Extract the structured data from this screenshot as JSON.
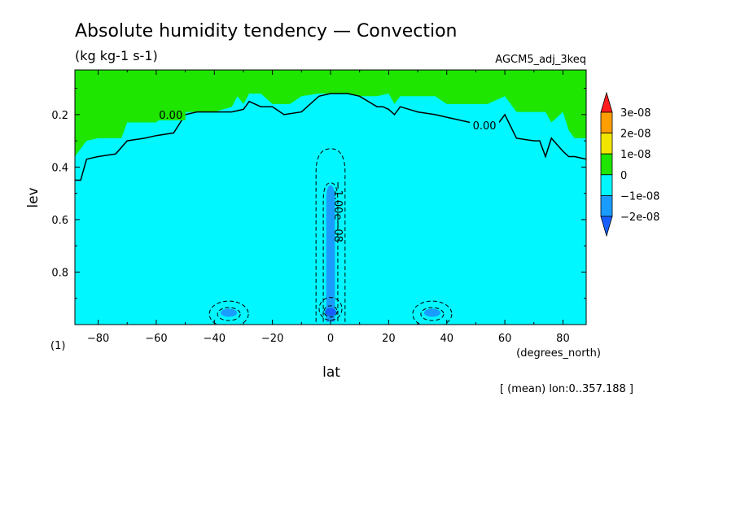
{
  "chart_data": {
    "type": "contour",
    "title": "Absolute humidity tendency — Convection",
    "units": "(kg kg-1 s-1)",
    "model_label": "AGCM5_adj_3keq",
    "xlabel": "lat",
    "x_units": "(degrees_north)",
    "ylabel": "lev",
    "y_units": "(1)",
    "footnote": "[ (mean) lon:0..357.188 ]",
    "xlim": [
      -88,
      88
    ],
    "ylim": [
      1.0,
      0.03
    ],
    "x_ticks": [
      -80,
      -60,
      -40,
      -20,
      0,
      20,
      40,
      60,
      80
    ],
    "x_tick_labels": [
      "−80",
      "−60",
      "−40",
      "−20",
      "0",
      "20",
      "40",
      "60",
      "80"
    ],
    "y_ticks": [
      0.2,
      0.4,
      0.6,
      0.8
    ],
    "y_tick_labels": [
      "0.2",
      "0.4",
      "0.6",
      "0.8"
    ],
    "colorbar": {
      "levels": [
        {
          "label": "3e-08",
          "value": 3e-08,
          "color": "#ff1c1c"
        },
        {
          "label": "2e-08",
          "value": 2e-08,
          "color": "#ff9e00"
        },
        {
          "label": "1e-08",
          "value": 1e-08,
          "color": "#f2e600"
        },
        {
          "label": "0",
          "value": 0,
          "color": "#1ee600"
        },
        {
          "label": "−1e-08",
          "value": -1e-08,
          "color": "#00f7ff"
        },
        {
          "label": "−2e-08",
          "value": -2e-08,
          "color": "#1a9cff"
        }
      ],
      "top_arrow_color": "#ff1c1c",
      "bottom_arrow_color": "#1760ff"
    },
    "fills": {
      "positive": "#1ee600",
      "negative_weak": "#00f7ff",
      "negative_mid": "#1a9cff",
      "negative_strong": "#1760ff"
    },
    "zero_boundary": {
      "lat": [
        -88,
        -86,
        -84,
        -80,
        -72,
        -70,
        -64,
        -60,
        -56,
        -52,
        -46,
        -40,
        -34,
        -32,
        -30,
        -28,
        -24,
        -20,
        -14,
        -10,
        -4,
        0,
        4,
        10,
        16,
        20,
        22,
        24,
        28,
        32,
        36,
        40,
        48,
        54,
        60,
        64,
        68,
        70,
        74,
        76,
        80,
        82,
        84,
        88
      ],
      "lev": [
        0.36,
        0.33,
        0.3,
        0.29,
        0.29,
        0.23,
        0.23,
        0.23,
        0.19,
        0.19,
        0.19,
        0.19,
        0.17,
        0.13,
        0.16,
        0.12,
        0.12,
        0.16,
        0.16,
        0.13,
        0.12,
        0.12,
        0.12,
        0.13,
        0.13,
        0.12,
        0.16,
        0.13,
        0.13,
        0.13,
        0.13,
        0.16,
        0.16,
        0.16,
        0.13,
        0.19,
        0.19,
        0.19,
        0.19,
        0.23,
        0.19,
        0.26,
        0.29,
        0.29
      ]
    },
    "zero_contour": {
      "label": "0.00",
      "lat": [
        -88,
        -86,
        -84,
        -80,
        -74,
        -70,
        -64,
        -60,
        -54,
        -50,
        -46,
        -40,
        -34,
        -30,
        -28,
        -24,
        -20,
        -16,
        -10,
        -4,
        0,
        6,
        10,
        16,
        18,
        20,
        22,
        24,
        30,
        36,
        40,
        48,
        54,
        56,
        58,
        60,
        64,
        70,
        72,
        74,
        76,
        80,
        82,
        84,
        88
      ],
      "lev": [
        0.45,
        0.45,
        0.37,
        0.36,
        0.35,
        0.3,
        0.29,
        0.28,
        0.27,
        0.2,
        0.19,
        0.19,
        0.19,
        0.18,
        0.15,
        0.17,
        0.17,
        0.2,
        0.19,
        0.13,
        0.12,
        0.12,
        0.13,
        0.17,
        0.17,
        0.18,
        0.2,
        0.17,
        0.19,
        0.2,
        0.21,
        0.23,
        0.24,
        0.23,
        0.23,
        0.2,
        0.29,
        0.3,
        0.3,
        0.36,
        0.29,
        0.34,
        0.36,
        0.36,
        0.37
      ]
    },
    "neg_contour_label": "−1.00e−08"
  }
}
